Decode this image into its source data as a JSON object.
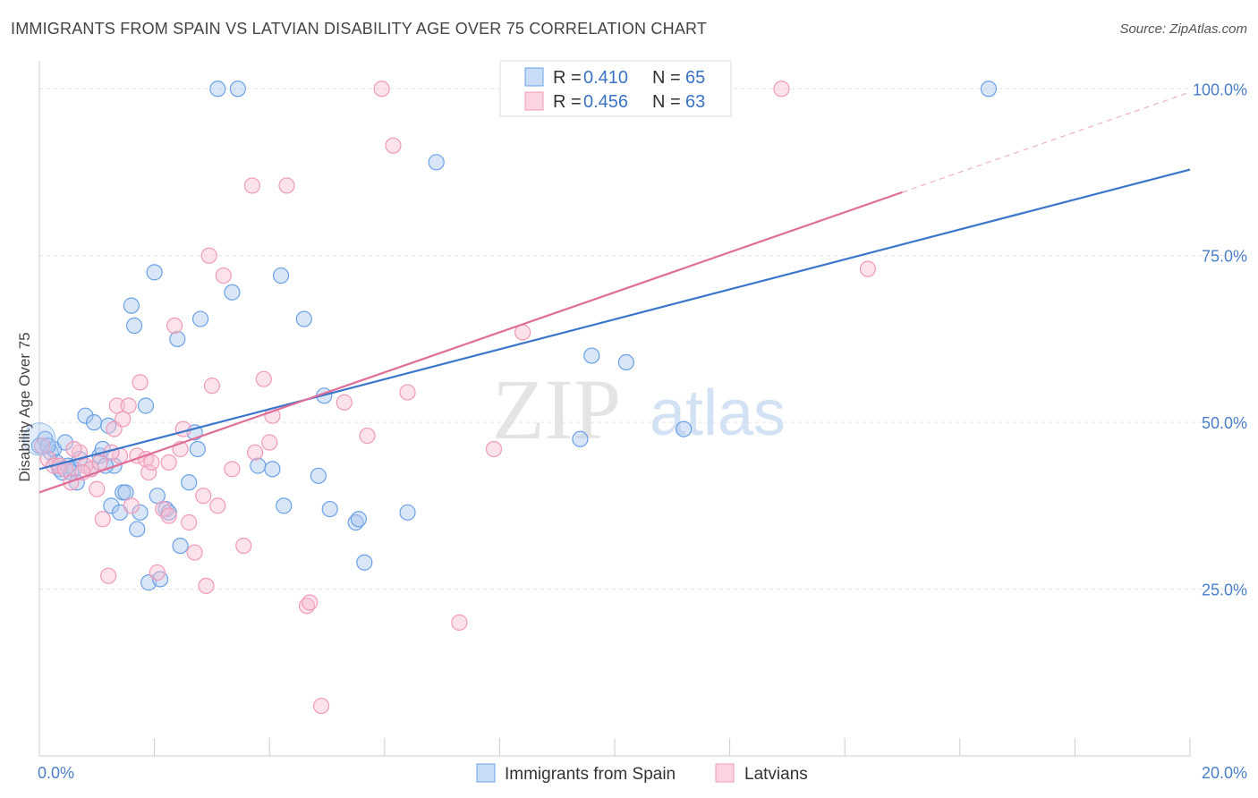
{
  "title": "IMMIGRANTS FROM SPAIN VS LATVIAN DISABILITY AGE OVER 75 CORRELATION CHART",
  "source": "Source: ZipAtlas.com",
  "watermark": {
    "zip": "ZIP",
    "atlas": "atlas"
  },
  "colors": {
    "blue": "#6aa1e6",
    "blue_line": "#3a76c9",
    "pink": "#f09ab8",
    "pink_line": "#e06e98",
    "axis_text": "#4a7fc8"
  },
  "legend": {
    "r_label": "R =",
    "n_label": "N =",
    "blue_r": "0.410",
    "blue_n": "65",
    "pink_r": "0.456",
    "pink_n": "63"
  },
  "bottom_legend": {
    "blue": "Immigrants from Spain",
    "pink": "Latvians"
  },
  "chart_data": {
    "type": "scatter",
    "title": "IMMIGRANTS FROM SPAIN VS LATVIAN DISABILITY AGE OVER 75 CORRELATION CHART",
    "xlabel": "",
    "ylabel": "Disability Age Over 75",
    "xlim": [
      0,
      20
    ],
    "ylim": [
      0,
      105
    ],
    "x_ticks": [
      "0.0%",
      "20.0%"
    ],
    "y_ticks": [
      "25.0%",
      "50.0%",
      "75.0%",
      "100.0%"
    ],
    "y_tick_values": [
      25,
      50,
      75,
      100
    ],
    "grid": true,
    "legend_position": "top-center",
    "series": [
      {
        "name": "Immigrants from Spain",
        "color": "#6aa1e6",
        "trend": {
          "x": [
            0,
            20
          ],
          "y": [
            43.0,
            87.9
          ]
        },
        "points": [
          [
            0.0,
            46.5
          ],
          [
            0.1,
            47.5
          ],
          [
            0.2,
            45.5
          ],
          [
            0.25,
            46.0
          ],
          [
            0.3,
            44.0
          ],
          [
            0.35,
            43.0
          ],
          [
            0.4,
            42.5
          ],
          [
            0.5,
            43.5
          ],
          [
            0.55,
            42.5
          ],
          [
            0.6,
            43.0
          ],
          [
            0.65,
            41.0
          ],
          [
            0.7,
            44.5
          ],
          [
            0.8,
            51.0
          ],
          [
            0.9,
            43.0
          ],
          [
            0.95,
            50.0
          ],
          [
            1.05,
            45.0
          ],
          [
            1.1,
            46.0
          ],
          [
            1.2,
            49.5
          ],
          [
            1.25,
            37.5
          ],
          [
            1.3,
            43.5
          ],
          [
            1.4,
            36.5
          ],
          [
            1.45,
            39.5
          ],
          [
            1.5,
            39.5
          ],
          [
            1.6,
            67.5
          ],
          [
            1.65,
            64.5
          ],
          [
            1.7,
            34.0
          ],
          [
            1.75,
            36.5
          ],
          [
            1.85,
            52.5
          ],
          [
            1.9,
            26.0
          ],
          [
            2.0,
            72.5
          ],
          [
            2.05,
            39.0
          ],
          [
            2.1,
            26.5
          ],
          [
            2.2,
            37.0
          ],
          [
            2.25,
            36.5
          ],
          [
            2.4,
            62.5
          ],
          [
            2.45,
            31.5
          ],
          [
            2.6,
            41.0
          ],
          [
            2.7,
            48.5
          ],
          [
            2.75,
            46.0
          ],
          [
            2.8,
            65.5
          ],
          [
            3.1,
            100.0
          ],
          [
            3.35,
            69.5
          ],
          [
            3.45,
            100.0
          ],
          [
            3.8,
            43.5
          ],
          [
            4.05,
            43.0
          ],
          [
            4.2,
            72.0
          ],
          [
            4.25,
            37.5
          ],
          [
            4.6,
            65.5
          ],
          [
            4.85,
            42.0
          ],
          [
            4.95,
            54.0
          ],
          [
            5.05,
            37.0
          ],
          [
            5.5,
            35.0
          ],
          [
            5.55,
            35.5
          ],
          [
            5.65,
            29.0
          ],
          [
            6.4,
            36.5
          ],
          [
            6.9,
            89.0
          ],
          [
            8.5,
            100.0
          ],
          [
            9.4,
            47.5
          ],
          [
            9.6,
            60.0
          ],
          [
            10.2,
            59.0
          ],
          [
            11.2,
            49.0
          ],
          [
            16.5,
            100.0
          ],
          [
            0.15,
            46.5
          ],
          [
            1.15,
            43.5
          ],
          [
            0.45,
            47.0
          ]
        ]
      },
      {
        "name": "Latvians",
        "color": "#f09ab8",
        "trend": {
          "x": [
            0,
            15
          ],
          "y": [
            39.5,
            84.5
          ]
        },
        "trend_dashed": {
          "x": [
            15,
            20
          ],
          "y": [
            84.5,
            99.5
          ]
        },
        "points": [
          [
            0.05,
            46.5
          ],
          [
            0.15,
            44.5
          ],
          [
            0.25,
            43.5
          ],
          [
            0.35,
            43.5
          ],
          [
            0.45,
            43.0
          ],
          [
            0.55,
            41.0
          ],
          [
            0.7,
            45.5
          ],
          [
            0.8,
            43.5
          ],
          [
            0.9,
            43.0
          ],
          [
            1.0,
            40.0
          ],
          [
            1.05,
            44.0
          ],
          [
            1.1,
            35.5
          ],
          [
            1.2,
            27.0
          ],
          [
            1.3,
            49.0
          ],
          [
            1.35,
            52.5
          ],
          [
            1.4,
            45.0
          ],
          [
            1.55,
            52.5
          ],
          [
            1.6,
            37.5
          ],
          [
            1.7,
            45.0
          ],
          [
            1.75,
            56.0
          ],
          [
            1.85,
            44.5
          ],
          [
            1.9,
            42.5
          ],
          [
            1.95,
            44.0
          ],
          [
            2.05,
            27.5
          ],
          [
            2.15,
            37.0
          ],
          [
            2.25,
            44.0
          ],
          [
            2.35,
            64.5
          ],
          [
            2.45,
            46.0
          ],
          [
            2.5,
            49.0
          ],
          [
            2.6,
            35.0
          ],
          [
            2.7,
            30.5
          ],
          [
            2.85,
            39.0
          ],
          [
            2.9,
            25.5
          ],
          [
            2.95,
            75.0
          ],
          [
            3.0,
            55.5
          ],
          [
            3.1,
            37.5
          ],
          [
            3.2,
            72.0
          ],
          [
            3.55,
            31.5
          ],
          [
            3.7,
            85.5
          ],
          [
            3.75,
            45.5
          ],
          [
            3.9,
            56.5
          ],
          [
            4.0,
            47.0
          ],
          [
            4.05,
            51.0
          ],
          [
            4.3,
            85.5
          ],
          [
            4.65,
            22.5
          ],
          [
            4.7,
            23.0
          ],
          [
            4.9,
            7.5
          ],
          [
            5.3,
            53.0
          ],
          [
            5.7,
            48.0
          ],
          [
            5.95,
            100.0
          ],
          [
            6.15,
            91.5
          ],
          [
            6.4,
            54.5
          ],
          [
            7.3,
            20.0
          ],
          [
            7.9,
            46.0
          ],
          [
            8.4,
            63.5
          ],
          [
            12.9,
            100.0
          ],
          [
            14.4,
            73.0
          ],
          [
            0.6,
            46.0
          ],
          [
            1.45,
            50.5
          ],
          [
            2.25,
            36.0
          ],
          [
            3.35,
            43.0
          ],
          [
            0.75,
            42.5
          ],
          [
            1.25,
            45.5
          ]
        ]
      }
    ]
  }
}
